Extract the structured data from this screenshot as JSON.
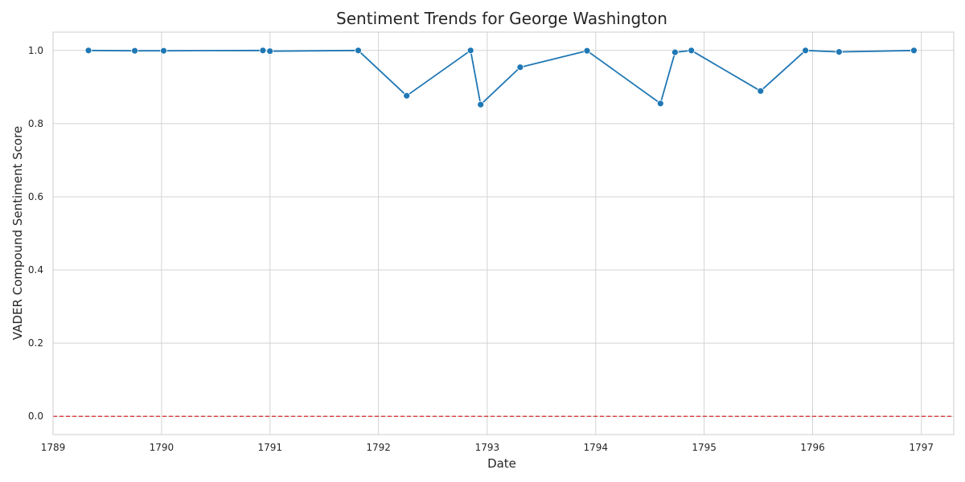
{
  "chart_data": {
    "type": "line",
    "title": "Sentiment Trends for George Washington",
    "xlabel": "Date",
    "ylabel": "VADER Compound Sentiment Score",
    "x_ticks": [
      "1789",
      "1790",
      "1791",
      "1792",
      "1793",
      "1794",
      "1795",
      "1796",
      "1797"
    ],
    "y_ticks": [
      "0.0",
      "0.2",
      "0.4",
      "0.6",
      "0.8",
      "1.0"
    ],
    "xlim": [
      "1789-01-01",
      "1797-04-20"
    ],
    "ylim": [
      -0.05,
      1.05
    ],
    "grid": true,
    "reference_line": {
      "y": 0.0,
      "style": "dashed",
      "color": "#d62728"
    },
    "series": [
      {
        "color": "#1f77b4",
        "points": [
          {
            "date": "1789-04-30",
            "value": 1.0
          },
          {
            "date": "1789-10-03",
            "value": 0.999
          },
          {
            "date": "1790-01-08",
            "value": 0.999
          },
          {
            "date": "1790-12-08",
            "value": 1.0
          },
          {
            "date": "1791-01-01",
            "value": 0.998
          },
          {
            "date": "1791-10-25",
            "value": 1.0
          },
          {
            "date": "1792-04-05",
            "value": 0.876
          },
          {
            "date": "1792-11-06",
            "value": 1.0
          },
          {
            "date": "1792-12-10",
            "value": 0.852
          },
          {
            "date": "1793-04-22",
            "value": 0.954
          },
          {
            "date": "1793-12-03",
            "value": 0.999
          },
          {
            "date": "1794-08-07",
            "value": 0.855
          },
          {
            "date": "1794-09-25",
            "value": 0.995
          },
          {
            "date": "1794-11-19",
            "value": 1.0
          },
          {
            "date": "1795-07-10",
            "value": 0.889
          },
          {
            "date": "1795-12-08",
            "value": 1.0
          },
          {
            "date": "1796-03-30",
            "value": 0.996
          },
          {
            "date": "1796-12-07",
            "value": 1.0
          }
        ]
      }
    ]
  }
}
